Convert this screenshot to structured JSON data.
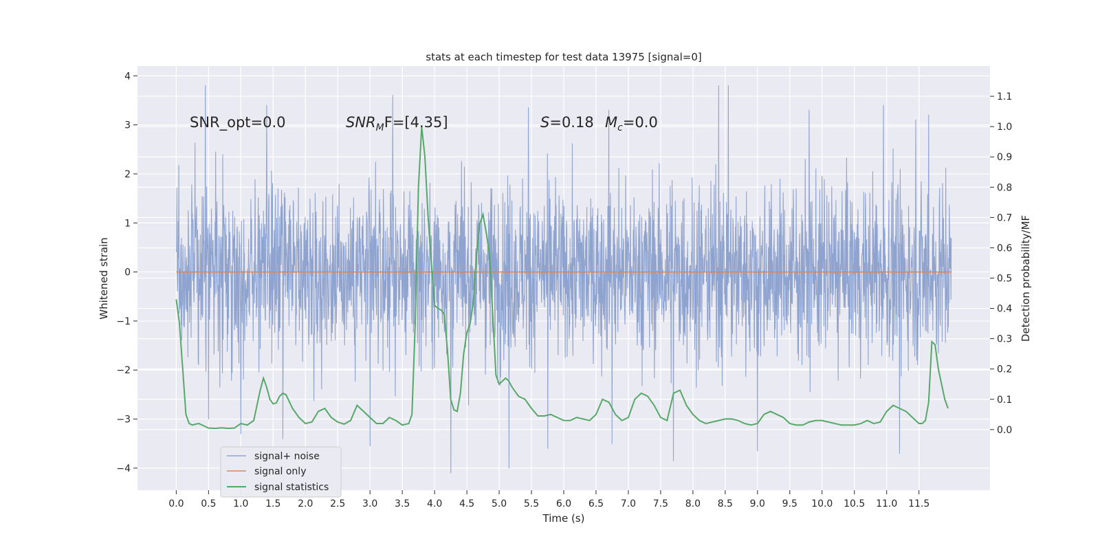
{
  "chart_data": {
    "type": "line",
    "title": "stats at each timestep for test data 13975 [signal=0]",
    "xlabel": "Time (s)",
    "ylabel": "Whitened strain",
    "y2label": "Detection probability/MF",
    "xlim": [
      -0.6,
      12.6
    ],
    "ylim": [
      -4.45,
      4.2
    ],
    "y2lim": [
      -0.2,
      1.2
    ],
    "x_ticks": [
      "0.0",
      "0.5",
      "1.0",
      "1.5",
      "2.0",
      "2.5",
      "3.0",
      "3.5",
      "4.0",
      "4.5",
      "5.0",
      "5.5",
      "6.0",
      "6.5",
      "7.0",
      "7.5",
      "8.0",
      "8.5",
      "9.0",
      "9.5",
      "10.0",
      "10.5",
      "11.0",
      "11.5"
    ],
    "y_ticks": [
      4,
      3,
      2,
      1,
      0,
      -1,
      -2,
      -3,
      -4
    ],
    "y_tick_labels": [
      "4",
      "3",
      "2",
      "1",
      "0",
      "−1",
      "−2",
      "−3",
      "−4"
    ],
    "y2_ticks": [
      1.1,
      1.0,
      0.9,
      0.8,
      0.7,
      0.6,
      0.5,
      0.4,
      0.3,
      0.2,
      0.1,
      0.0
    ],
    "y2_tick_labels": [
      "1.1",
      "1.0",
      "0.9",
      "0.8",
      "0.7",
      "0.6",
      "0.5",
      "0.4",
      "0.3",
      "0.2",
      "0.1",
      "0.0"
    ],
    "grid": true,
    "legend_position": "lower-left",
    "annotations": {
      "snr_opt": "SNR_opt=0.0",
      "snr_mf_base": "SNR",
      "snr_mf_sub": "M",
      "snr_mf_rest": "F=[4.35]",
      "s_label": "S",
      "s_value": "=0.18",
      "mc_base": "M",
      "mc_sub": "c",
      "mc_value": "=0.0"
    },
    "series": [
      {
        "name": "signal+ noise",
        "color": "#8fa3cf",
        "x_range": [
          0.0,
          12.0
        ],
        "envelope": {
          "typical_abs": 2.0,
          "peaks": [
            {
              "x": 0.45,
              "y": 3.8
            },
            {
              "x": 0.5,
              "y": -3.0
            },
            {
              "x": 1.0,
              "y": -3.3
            },
            {
              "x": 1.4,
              "y": 3.4
            },
            {
              "x": 1.65,
              "y": -3.4
            },
            {
              "x": 3.0,
              "y": -3.55
            },
            {
              "x": 3.35,
              "y": 3.6
            },
            {
              "x": 4.25,
              "y": -4.1
            },
            {
              "x": 5.15,
              "y": -4.0
            },
            {
              "x": 5.45,
              "y": 3.35
            },
            {
              "x": 5.75,
              "y": -3.6
            },
            {
              "x": 6.7,
              "y": 3.3
            },
            {
              "x": 6.75,
              "y": -3.5
            },
            {
              "x": 7.7,
              "y": -3.85
            },
            {
              "x": 8.4,
              "y": 3.8
            },
            {
              "x": 8.55,
              "y": 3.8
            },
            {
              "x": 9.0,
              "y": -3.65
            },
            {
              "x": 9.8,
              "y": 3.3
            },
            {
              "x": 10.95,
              "y": 3.4
            },
            {
              "x": 11.2,
              "y": -3.7
            },
            {
              "x": 11.45,
              "y": 3.1
            },
            {
              "x": 11.65,
              "y": 3.2
            }
          ]
        }
      },
      {
        "name": "signal only",
        "color": "#dd8452",
        "x": [
          0.0,
          12.0
        ],
        "y": [
          0.0,
          0.0
        ]
      },
      {
        "name": "signal statistics",
        "color": "#55a868",
        "axis": "right",
        "x": [
          0.0,
          0.05,
          0.1,
          0.15,
          0.2,
          0.25,
          0.3,
          0.35,
          0.4,
          0.5,
          0.6,
          0.7,
          0.8,
          0.9,
          1.0,
          1.1,
          1.2,
          1.25,
          1.3,
          1.35,
          1.4,
          1.45,
          1.5,
          1.55,
          1.6,
          1.65,
          1.7,
          1.8,
          1.9,
          2.0,
          2.1,
          2.2,
          2.3,
          2.4,
          2.5,
          2.6,
          2.7,
          2.8,
          2.9,
          3.0,
          3.1,
          3.2,
          3.3,
          3.4,
          3.5,
          3.6,
          3.65,
          3.7,
          3.75,
          3.8,
          3.85,
          3.9,
          3.95,
          4.0,
          4.05,
          4.1,
          4.15,
          4.2,
          4.25,
          4.3,
          4.35,
          4.4,
          4.45,
          4.5,
          4.55,
          4.6,
          4.65,
          4.7,
          4.75,
          4.8,
          4.85,
          4.9,
          4.95,
          5.0,
          5.05,
          5.1,
          5.15,
          5.2,
          5.3,
          5.4,
          5.5,
          5.6,
          5.7,
          5.8,
          5.9,
          6.0,
          6.1,
          6.2,
          6.3,
          6.4,
          6.5,
          6.6,
          6.7,
          6.8,
          6.9,
          7.0,
          7.1,
          7.2,
          7.3,
          7.4,
          7.5,
          7.6,
          7.7,
          7.8,
          7.9,
          8.0,
          8.1,
          8.2,
          8.3,
          8.4,
          8.5,
          8.6,
          8.7,
          8.8,
          8.9,
          9.0,
          9.1,
          9.2,
          9.3,
          9.4,
          9.5,
          9.6,
          9.7,
          9.8,
          9.9,
          10.0,
          10.1,
          10.2,
          10.3,
          10.4,
          10.5,
          10.6,
          10.7,
          10.8,
          10.9,
          11.0,
          11.1,
          11.2,
          11.3,
          11.4,
          11.5,
          11.55,
          11.6,
          11.65,
          11.7,
          11.75,
          11.8,
          11.85,
          11.9,
          11.95
        ],
        "y": [
          0.43,
          0.35,
          0.2,
          0.05,
          0.02,
          0.015,
          0.018,
          0.02,
          0.015,
          0.005,
          0.004,
          0.006,
          0.004,
          0.005,
          0.02,
          0.015,
          0.03,
          0.08,
          0.13,
          0.17,
          0.14,
          0.1,
          0.085,
          0.088,
          0.11,
          0.12,
          0.115,
          0.07,
          0.04,
          0.02,
          0.025,
          0.06,
          0.07,
          0.04,
          0.025,
          0.018,
          0.03,
          0.08,
          0.06,
          0.04,
          0.02,
          0.02,
          0.04,
          0.03,
          0.015,
          0.02,
          0.05,
          0.35,
          0.8,
          1.0,
          0.9,
          0.7,
          0.55,
          0.41,
          0.4,
          0.395,
          0.38,
          0.26,
          0.1,
          0.065,
          0.06,
          0.12,
          0.25,
          0.32,
          0.35,
          0.42,
          0.58,
          0.68,
          0.71,
          0.65,
          0.58,
          0.38,
          0.18,
          0.15,
          0.16,
          0.17,
          0.16,
          0.14,
          0.11,
          0.1,
          0.07,
          0.045,
          0.045,
          0.05,
          0.04,
          0.03,
          0.03,
          0.04,
          0.035,
          0.03,
          0.05,
          0.1,
          0.09,
          0.05,
          0.03,
          0.04,
          0.1,
          0.12,
          0.11,
          0.08,
          0.04,
          0.03,
          0.12,
          0.13,
          0.08,
          0.05,
          0.03,
          0.02,
          0.025,
          0.03,
          0.035,
          0.035,
          0.03,
          0.02,
          0.015,
          0.02,
          0.05,
          0.06,
          0.05,
          0.04,
          0.02,
          0.015,
          0.015,
          0.025,
          0.03,
          0.03,
          0.025,
          0.02,
          0.015,
          0.015,
          0.015,
          0.02,
          0.03,
          0.02,
          0.025,
          0.06,
          0.08,
          0.07,
          0.06,
          0.04,
          0.02,
          0.02,
          0.03,
          0.09,
          0.29,
          0.28,
          0.2,
          0.15,
          0.1,
          0.07
        ]
      }
    ]
  }
}
